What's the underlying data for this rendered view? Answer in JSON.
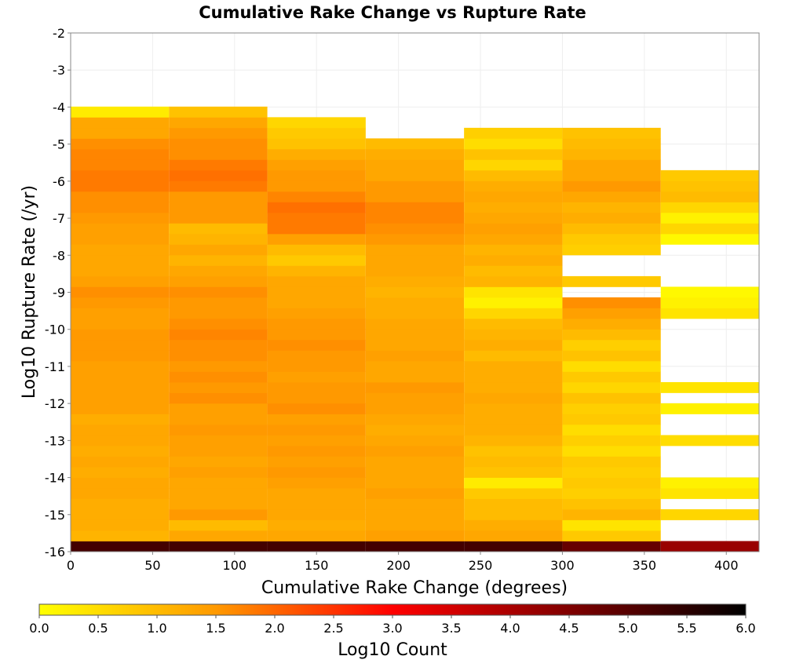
{
  "chart_data": {
    "type": "heatmap",
    "title": "Cumulative Rake Change vs Rupture Rate",
    "xlabel": "Cumulative Rake Change (degrees)",
    "ylabel": "Log10 Rupture Rate (/yr)",
    "xlim": [
      0,
      420
    ],
    "ylim": [
      -16,
      -2
    ],
    "x_ticks": [
      0,
      50,
      100,
      150,
      200,
      250,
      300,
      350,
      400
    ],
    "y_ticks": [
      -2,
      -3,
      -4,
      -5,
      -6,
      -7,
      -8,
      -9,
      -10,
      -11,
      -12,
      -13,
      -14,
      -15,
      -16
    ],
    "x_bin_edges": [
      0,
      60,
      120,
      180,
      240,
      300,
      360,
      420
    ],
    "y_bin_width": 0.286,
    "y_bin_start": -16,
    "colorbar": {
      "label": "Log10 Count",
      "range": [
        0,
        6
      ],
      "ticks": [
        "0.0",
        "0.5",
        "1.0",
        "1.5",
        "2.0",
        "2.5",
        "3.0",
        "3.5",
        "4.0",
        "4.5",
        "5.0",
        "5.5",
        "6.0"
      ],
      "colors": [
        "#ffff00",
        "#ff9900",
        "#ff0000",
        "#000000"
      ]
    },
    "grid": true,
    "series": [
      {
        "x_range": [
          0,
          60
        ],
        "values": [
          5.2,
          1.1,
          1.2,
          1.2,
          1.2,
          1.3,
          1.3,
          1.2,
          1.3,
          1.2,
          1.3,
          1.3,
          1.2,
          1.4,
          1.4,
          1.4,
          1.4,
          1.4,
          1.5,
          1.5,
          1.5,
          1.4,
          1.4,
          1.5,
          1.6,
          1.4,
          1.3,
          1.3,
          1.3,
          1.4,
          1.4,
          1.5,
          1.6,
          1.6,
          1.8,
          1.8,
          1.7,
          1.7,
          1.6,
          1.3,
          1.3,
          0.3,
          null,
          null,
          null,
          null,
          null,
          null,
          null
        ]
      },
      {
        "x_range": [
          60,
          120
        ],
        "values": [
          5.2,
          1.3,
          1.0,
          1.5,
          1.3,
          1.3,
          1.3,
          1.4,
          1.3,
          1.4,
          1.4,
          1.5,
          1.4,
          1.4,
          1.6,
          1.5,
          1.6,
          1.5,
          1.6,
          1.6,
          1.7,
          1.6,
          1.5,
          1.5,
          1.6,
          1.4,
          1.3,
          1.1,
          1.3,
          1.1,
          1.0,
          1.5,
          1.5,
          1.5,
          1.8,
          1.9,
          1.8,
          1.6,
          1.6,
          1.5,
          1.3,
          0.9,
          null,
          null,
          null,
          null,
          null,
          null,
          null
        ]
      },
      {
        "x_range": [
          120,
          180
        ],
        "values": [
          5.2,
          1.3,
          1.2,
          1.3,
          1.3,
          1.3,
          1.4,
          1.5,
          1.4,
          1.5,
          1.4,
          1.5,
          1.4,
          1.6,
          1.5,
          1.5,
          1.4,
          1.5,
          1.5,
          1.6,
          1.5,
          1.5,
          1.4,
          1.3,
          1.3,
          1.3,
          1.1,
          0.8,
          1.0,
          1.4,
          1.8,
          1.8,
          1.9,
          1.7,
          1.5,
          1.5,
          1.4,
          1.2,
          0.9,
          0.8,
          0.6,
          null,
          null,
          null,
          null,
          null,
          null,
          null,
          null
        ]
      },
      {
        "x_range": [
          180,
          240
        ],
        "values": [
          5.2,
          1.4,
          1.3,
          1.3,
          1.3,
          1.4,
          1.3,
          1.3,
          1.3,
          1.4,
          1.3,
          1.2,
          1.3,
          1.4,
          1.4,
          1.5,
          1.3,
          1.3,
          1.4,
          1.3,
          1.3,
          1.3,
          1.2,
          1.2,
          1.1,
          1.2,
          1.3,
          1.3,
          1.3,
          1.5,
          1.6,
          1.7,
          1.7,
          1.5,
          1.5,
          1.3,
          1.3,
          1.2,
          1.0,
          null,
          null,
          null,
          null,
          null,
          null,
          null,
          null,
          null,
          null
        ]
      },
      {
        "x_range": [
          240,
          300
        ],
        "values": [
          5.2,
          1.3,
          1.2,
          1.0,
          1.0,
          0.8,
          0.3,
          0.9,
          1.0,
          0.9,
          1.1,
          1.2,
          1.2,
          1.2,
          1.3,
          1.2,
          1.2,
          1.2,
          1.0,
          1.2,
          1.1,
          1.0,
          0.6,
          0.2,
          0.4,
          1.1,
          1.0,
          1.2,
          1.1,
          1.3,
          1.4,
          1.3,
          1.2,
          1.3,
          1.2,
          1.0,
          0.6,
          0.9,
          0.5,
          0.7,
          null,
          null,
          null,
          null,
          null,
          null,
          null,
          null,
          null
        ]
      },
      {
        "x_range": [
          300,
          360
        ],
        "values": [
          4.8,
          0.8,
          0.4,
          1.1,
          0.9,
          0.7,
          0.8,
          0.7,
          0.8,
          0.5,
          0.7,
          0.5,
          0.8,
          0.7,
          0.9,
          0.6,
          0.8,
          0.5,
          0.9,
          0.7,
          1.0,
          1.2,
          1.4,
          1.6,
          null,
          0.8,
          null,
          null,
          0.7,
          0.8,
          1.0,
          1.2,
          1.1,
          1.3,
          1.5,
          1.3,
          1.3,
          1.1,
          1.0,
          0.9,
          null,
          null,
          null,
          null,
          null,
          null,
          null,
          null,
          null
        ]
      },
      {
        "x_range": [
          360,
          420
        ],
        "values": [
          4.2,
          null,
          null,
          0.6,
          null,
          0.4,
          0.2,
          null,
          null,
          null,
          0.5,
          null,
          null,
          0.2,
          null,
          0.4,
          null,
          null,
          null,
          null,
          null,
          null,
          0.4,
          0.2,
          0.1,
          null,
          null,
          null,
          null,
          0.1,
          0.6,
          0.2,
          0.6,
          1.0,
          0.9,
          0.8,
          null,
          null,
          null,
          null,
          null,
          null,
          null,
          null,
          null,
          null,
          null,
          null,
          null
        ]
      }
    ]
  }
}
